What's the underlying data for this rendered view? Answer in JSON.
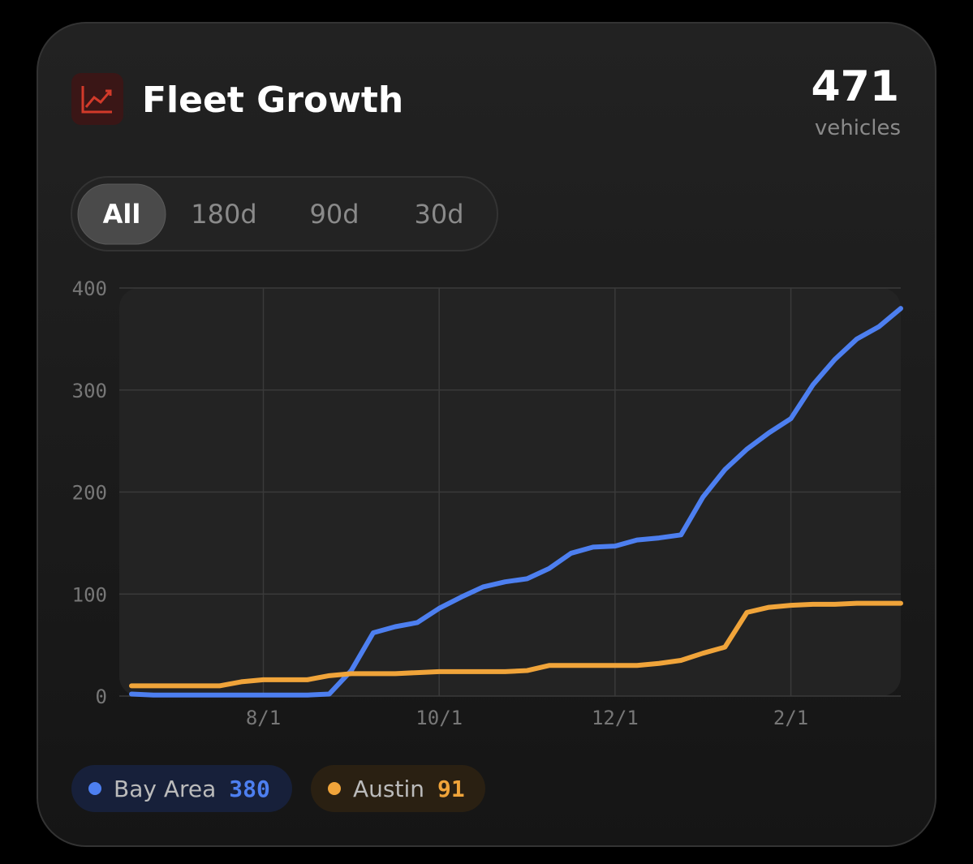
{
  "header": {
    "title": "Fleet Growth",
    "total": "471",
    "total_unit": "vehicles"
  },
  "tabs": {
    "items": [
      "All",
      "180d",
      "90d",
      "30d"
    ],
    "active": "All"
  },
  "chart_data": {
    "type": "line",
    "x": [
      "6/15",
      "6/22",
      "7/1",
      "7/8",
      "7/15",
      "7/22",
      "8/1",
      "8/8",
      "8/15",
      "8/22",
      "9/1",
      "9/8",
      "9/15",
      "9/22",
      "10/1",
      "10/8",
      "10/15",
      "10/22",
      "11/1",
      "11/8",
      "11/15",
      "11/22",
      "12/1",
      "12/8",
      "12/15",
      "12/22",
      "1/1",
      "1/8",
      "1/15",
      "1/22",
      "2/1",
      "2/8",
      "2/15",
      "2/22",
      "3/1",
      "3/8"
    ],
    "xticks": [
      "8/1",
      "10/1",
      "12/1",
      "2/1"
    ],
    "ylim": [
      0,
      400
    ],
    "yticks": [
      0,
      100,
      200,
      300,
      400
    ],
    "grid": true,
    "series": [
      {
        "name": "Bay Area",
        "color": "#4d7ff0",
        "total": "380",
        "values": [
          2,
          1,
          1,
          1,
          1,
          1,
          1,
          1,
          1,
          2,
          25,
          62,
          68,
          72,
          86,
          97,
          107,
          112,
          115,
          125,
          140,
          146,
          147,
          153,
          155,
          158,
          195,
          222,
          242,
          258,
          272,
          305,
          330,
          350,
          362,
          380
        ]
      },
      {
        "name": "Austin",
        "color": "#f0a43a",
        "total": "91",
        "values": [
          10,
          10,
          10,
          10,
          10,
          14,
          16,
          16,
          16,
          20,
          22,
          22,
          22,
          23,
          24,
          24,
          24,
          24,
          25,
          30,
          30,
          30,
          30,
          30,
          32,
          35,
          42,
          48,
          82,
          87,
          89,
          90,
          90,
          91,
          91,
          91
        ]
      }
    ]
  }
}
